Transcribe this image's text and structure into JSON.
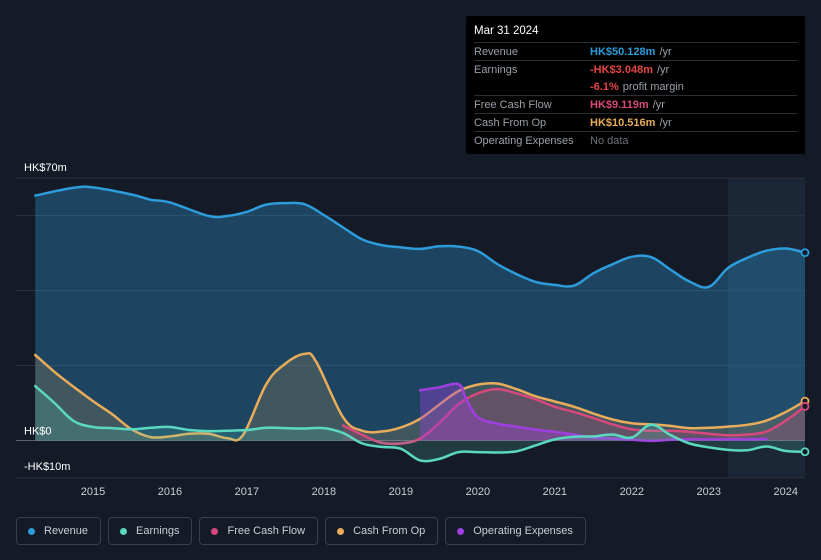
{
  "tooltip": {
    "date": "Mar 31 2024",
    "rows": [
      {
        "label": "Revenue",
        "value": "HK$50.128m",
        "unit": "/yr",
        "color": "#2d9cdb"
      },
      {
        "label": "Earnings",
        "value": "-HK$3.048m",
        "unit": "/yr",
        "color": "#e64545"
      },
      {
        "label": "",
        "value": "-6.1%",
        "unit": "profit margin",
        "color": "#e64545"
      },
      {
        "label": "Free Cash Flow",
        "value": "HK$9.119m",
        "unit": "/yr",
        "color": "#d7487c"
      },
      {
        "label": "Cash From Op",
        "value": "HK$10.516m",
        "unit": "/yr",
        "color": "#e8ac5a"
      },
      {
        "label": "Operating Expenses",
        "value": "No data",
        "unit": "",
        "color": "#6c717a"
      }
    ]
  },
  "legend": [
    {
      "label": "Revenue",
      "color": "#2d9cdb"
    },
    {
      "label": "Earnings",
      "color": "#5ad8c0"
    },
    {
      "label": "Free Cash Flow",
      "color": "#d7487c"
    },
    {
      "label": "Cash From Op",
      "color": "#e8ac5a"
    },
    {
      "label": "Operating Expenses",
      "color": "#a03fe0"
    }
  ],
  "chart_data": {
    "type": "area",
    "ylim": [
      -10,
      70
    ],
    "ytick_labels": [
      "HK$70m",
      "HK$0",
      "-HK$10m"
    ],
    "y_ticks": [
      70,
      0,
      -10
    ],
    "gridlines": [
      60,
      40,
      20,
      0
    ],
    "xlim": [
      2014.0,
      2024.25
    ],
    "xtick_labels": [
      "2015",
      "2016",
      "2017",
      "2018",
      "2019",
      "2020",
      "2021",
      "2022",
      "2023",
      "2024"
    ],
    "x_ticks": [
      2015,
      2016,
      2017,
      2018,
      2019,
      2020,
      2021,
      2022,
      2023,
      2024
    ],
    "forecast_shade_start": 2023.25,
    "series": [
      {
        "name": "Revenue",
        "color": "#2d9cdb",
        "fill_opacity": 0.33,
        "end_marker": true,
        "points": [
          [
            2014.25,
            65.3
          ],
          [
            2014.75,
            67.4
          ],
          [
            2015.0,
            67.5
          ],
          [
            2015.5,
            65.6
          ],
          [
            2015.75,
            64.2
          ],
          [
            2016.0,
            63.5
          ],
          [
            2016.5,
            59.9
          ],
          [
            2016.75,
            59.9
          ],
          [
            2017.0,
            61.0
          ],
          [
            2017.25,
            62.9
          ],
          [
            2017.5,
            63.3
          ],
          [
            2017.75,
            63.0
          ],
          [
            2018.0,
            60.1
          ],
          [
            2018.25,
            56.8
          ],
          [
            2018.5,
            53.6
          ],
          [
            2018.75,
            52.1
          ],
          [
            2019.0,
            51.5
          ],
          [
            2019.25,
            51.1
          ],
          [
            2019.5,
            51.8
          ],
          [
            2019.75,
            51.7
          ],
          [
            2020.0,
            50.5
          ],
          [
            2020.25,
            47.1
          ],
          [
            2020.5,
            44.4
          ],
          [
            2020.75,
            42.3
          ],
          [
            2021.0,
            41.5
          ],
          [
            2021.25,
            41.3
          ],
          [
            2021.5,
            44.6
          ],
          [
            2021.75,
            47.0
          ],
          [
            2022.0,
            49.0
          ],
          [
            2022.25,
            48.9
          ],
          [
            2022.5,
            45.6
          ],
          [
            2022.75,
            42.4
          ],
          [
            2023.0,
            41.0
          ],
          [
            2023.25,
            46.0
          ],
          [
            2023.5,
            48.7
          ],
          [
            2023.75,
            50.6
          ],
          [
            2024.0,
            51.2
          ],
          [
            2024.25,
            50.1
          ]
        ]
      },
      {
        "name": "Cash From Op",
        "color": "#e8ac5a",
        "fill_opacity": 0.18,
        "end_marker": true,
        "points": [
          [
            2014.25,
            22.8
          ],
          [
            2014.5,
            18.3
          ],
          [
            2014.75,
            14.3
          ],
          [
            2015.0,
            10.5
          ],
          [
            2015.25,
            7.0
          ],
          [
            2015.5,
            3.0
          ],
          [
            2015.75,
            0.9
          ],
          [
            2016.0,
            1.1
          ],
          [
            2016.25,
            1.8
          ],
          [
            2016.5,
            1.8
          ],
          [
            2016.75,
            0.6
          ],
          [
            2016.95,
            1.5
          ],
          [
            2017.25,
            15.0
          ],
          [
            2017.5,
            20.5
          ],
          [
            2017.75,
            23.1
          ],
          [
            2017.9,
            21.0
          ],
          [
            2018.25,
            6.2
          ],
          [
            2018.5,
            2.6
          ],
          [
            2018.75,
            2.4
          ],
          [
            2019.0,
            3.5
          ],
          [
            2019.25,
            5.8
          ],
          [
            2019.5,
            9.6
          ],
          [
            2019.75,
            13.2
          ],
          [
            2020.0,
            14.9
          ],
          [
            2020.25,
            15.2
          ],
          [
            2020.5,
            13.7
          ],
          [
            2020.75,
            11.8
          ],
          [
            2021.0,
            10.4
          ],
          [
            2021.25,
            9.0
          ],
          [
            2021.5,
            7.2
          ],
          [
            2021.75,
            5.6
          ],
          [
            2022.0,
            4.6
          ],
          [
            2022.25,
            4.3
          ],
          [
            2022.5,
            3.9
          ],
          [
            2022.75,
            3.3
          ],
          [
            2023.0,
            3.4
          ],
          [
            2023.25,
            3.7
          ],
          [
            2023.5,
            4.2
          ],
          [
            2023.75,
            5.3
          ],
          [
            2024.0,
            7.6
          ],
          [
            2024.25,
            10.5
          ]
        ]
      },
      {
        "name": "Free Cash Flow",
        "color": "#d7487c",
        "fill_opacity": 0.22,
        "end_marker": true,
        "points": [
          [
            2018.25,
            4.0
          ],
          [
            2018.5,
            1.5
          ],
          [
            2018.75,
            -0.6
          ],
          [
            2019.0,
            -0.8
          ],
          [
            2019.25,
            0.5
          ],
          [
            2019.5,
            4.7
          ],
          [
            2019.75,
            9.7
          ],
          [
            2020.0,
            12.6
          ],
          [
            2020.25,
            13.7
          ],
          [
            2020.5,
            12.6
          ],
          [
            2020.75,
            11.0
          ],
          [
            2021.0,
            9.0
          ],
          [
            2021.25,
            7.6
          ],
          [
            2021.5,
            6.0
          ],
          [
            2021.75,
            4.3
          ],
          [
            2022.0,
            3.0
          ],
          [
            2022.25,
            2.6
          ],
          [
            2022.5,
            2.6
          ],
          [
            2022.75,
            2.3
          ],
          [
            2023.0,
            1.8
          ],
          [
            2023.25,
            1.4
          ],
          [
            2023.5,
            1.6
          ],
          [
            2023.75,
            2.4
          ],
          [
            2024.0,
            5.3
          ],
          [
            2024.25,
            9.1
          ]
        ]
      },
      {
        "name": "Operating Expenses",
        "color": "#a03fe0",
        "fill_opacity": 0.38,
        "end_marker": false,
        "points": [
          [
            2019.25,
            13.4
          ],
          [
            2019.5,
            14.2
          ],
          [
            2019.75,
            15.0
          ],
          [
            2019.85,
            11.0
          ],
          [
            2020.0,
            6.2
          ],
          [
            2020.25,
            4.5
          ],
          [
            2020.5,
            3.7
          ],
          [
            2020.75,
            2.9
          ],
          [
            2021.0,
            2.3
          ],
          [
            2021.25,
            1.6
          ],
          [
            2021.5,
            0.8
          ],
          [
            2021.75,
            0.5
          ],
          [
            2022.0,
            0.2
          ],
          [
            2022.25,
            -0.1
          ],
          [
            2022.5,
            0.2
          ],
          [
            2022.75,
            0.3
          ],
          [
            2023.0,
            0.3
          ],
          [
            2023.25,
            0.3
          ],
          [
            2023.5,
            0.3
          ],
          [
            2023.75,
            0.4
          ]
        ]
      },
      {
        "name": "Earnings",
        "color": "#5ad8c0",
        "fill_opacity": 0.18,
        "end_marker": true,
        "points": [
          [
            2014.25,
            14.5
          ],
          [
            2014.5,
            10.0
          ],
          [
            2014.75,
            5.2
          ],
          [
            2015.0,
            3.6
          ],
          [
            2015.25,
            3.3
          ],
          [
            2015.5,
            3.0
          ],
          [
            2015.75,
            3.4
          ],
          [
            2016.0,
            3.6
          ],
          [
            2016.25,
            2.8
          ],
          [
            2016.5,
            2.5
          ],
          [
            2016.75,
            2.6
          ],
          [
            2017.0,
            2.8
          ],
          [
            2017.25,
            3.4
          ],
          [
            2017.5,
            3.3
          ],
          [
            2017.75,
            3.2
          ],
          [
            2018.0,
            3.3
          ],
          [
            2018.25,
            2.0
          ],
          [
            2018.5,
            -0.8
          ],
          [
            2018.75,
            -1.7
          ],
          [
            2019.0,
            -2.2
          ],
          [
            2019.25,
            -5.3
          ],
          [
            2019.5,
            -4.9
          ],
          [
            2019.75,
            -3.1
          ],
          [
            2020.0,
            -3.1
          ],
          [
            2020.25,
            -3.2
          ],
          [
            2020.5,
            -2.9
          ],
          [
            2020.75,
            -1.3
          ],
          [
            2021.0,
            0.3
          ],
          [
            2021.25,
            1.0
          ],
          [
            2021.5,
            1.1
          ],
          [
            2021.75,
            1.6
          ],
          [
            2022.0,
            0.8
          ],
          [
            2022.25,
            4.2
          ],
          [
            2022.5,
            1.5
          ],
          [
            2022.75,
            -0.8
          ],
          [
            2023.0,
            -1.8
          ],
          [
            2023.25,
            -2.5
          ],
          [
            2023.5,
            -2.6
          ],
          [
            2023.75,
            -1.6
          ],
          [
            2024.0,
            -2.8
          ],
          [
            2024.25,
            -3.0
          ]
        ]
      }
    ]
  }
}
